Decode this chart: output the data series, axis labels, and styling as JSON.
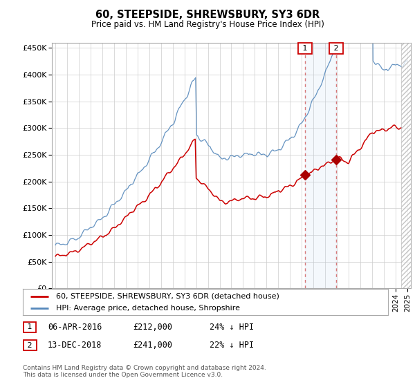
{
  "title": "60, STEEPSIDE, SHREWSBURY, SY3 6DR",
  "subtitle": "Price paid vs. HM Land Registry's House Price Index (HPI)",
  "ylabel_ticks": [
    "£0",
    "£50K",
    "£100K",
    "£150K",
    "£200K",
    "£250K",
    "£300K",
    "£350K",
    "£400K",
    "£450K"
  ],
  "ytick_values": [
    0,
    50000,
    100000,
    150000,
    200000,
    250000,
    300000,
    350000,
    400000,
    450000
  ],
  "ylim": [
    0,
    460000
  ],
  "xlim_left": 1994.7,
  "xlim_right": 2025.3,
  "legend_line1": "60, STEEPSIDE, SHREWSBURY, SY3 6DR (detached house)",
  "legend_line2": "HPI: Average price, detached house, Shropshire",
  "sale1_date": "06-APR-2016",
  "sale1_price": 212000,
  "sale1_pct": "24% ↓ HPI",
  "sale2_date": "13-DEC-2018",
  "sale2_price": 241000,
  "sale2_pct": "22% ↓ HPI",
  "footnote": "Contains HM Land Registry data © Crown copyright and database right 2024.\nThis data is licensed under the Open Government Licence v3.0.",
  "line_color_red": "#cc0000",
  "line_color_blue": "#5588bb",
  "marker_color_red": "#aa0000",
  "sale1_x": 2016.27,
  "sale2_x": 2018.95,
  "hatch_start": 2024.5,
  "background_color": "#ffffff",
  "plot_bg_color": "#ffffff",
  "grid_color": "#cccccc"
}
